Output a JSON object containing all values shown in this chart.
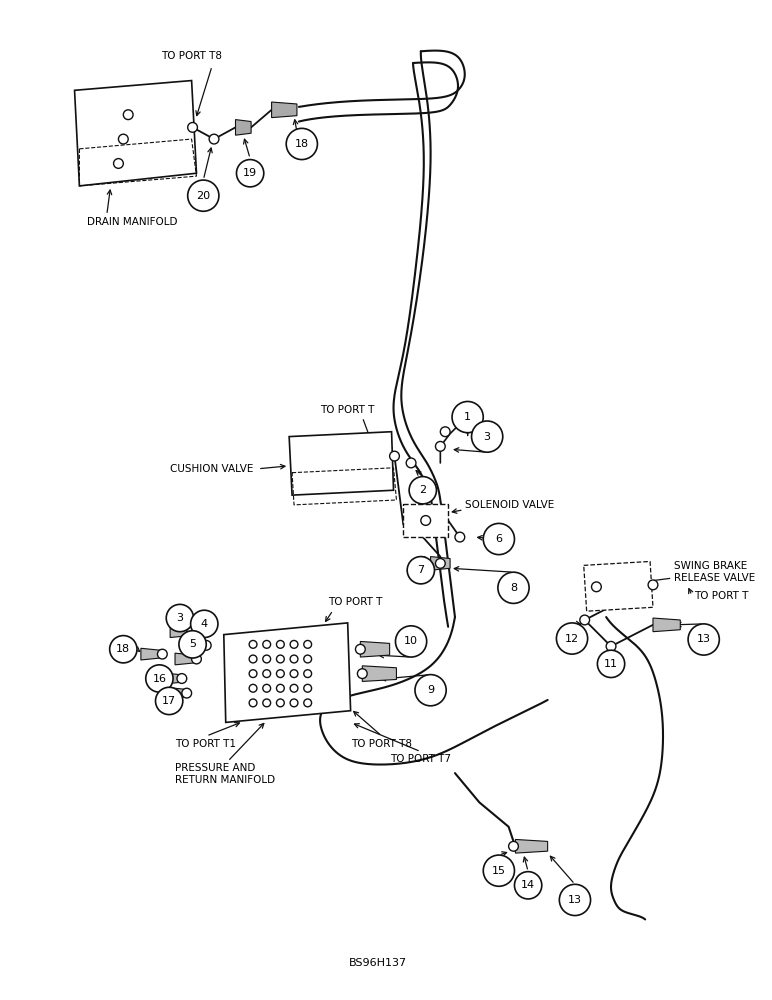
{
  "footer": "BS96H137",
  "background": "#ffffff",
  "fig_width": 7.72,
  "fig_height": 10.0,
  "lc": "#111111",
  "tc": "#000000",
  "labels": {
    "drain_manifold": "DRAIN MANIFOLD",
    "to_port_t8_top": "TO PORT T8",
    "cushion_valve": "CUSHION VALVE",
    "to_port_t_cushion": "TO PORT T",
    "solenoid_valve": "SOLENOID VALVE",
    "swing_brake": "SWING BRAKE\nRELEASE VALVE",
    "to_port_t_swing": "TO PORT T",
    "pressure_return": "PRESSURE AND\nRETURN MANIFOLD",
    "to_port_t1": "TO PORT T1",
    "to_port_t7": "TO PORT T7",
    "to_port_t8_bottom": "TO PORT T8",
    "to_port_t_main": "TO PORT T"
  }
}
